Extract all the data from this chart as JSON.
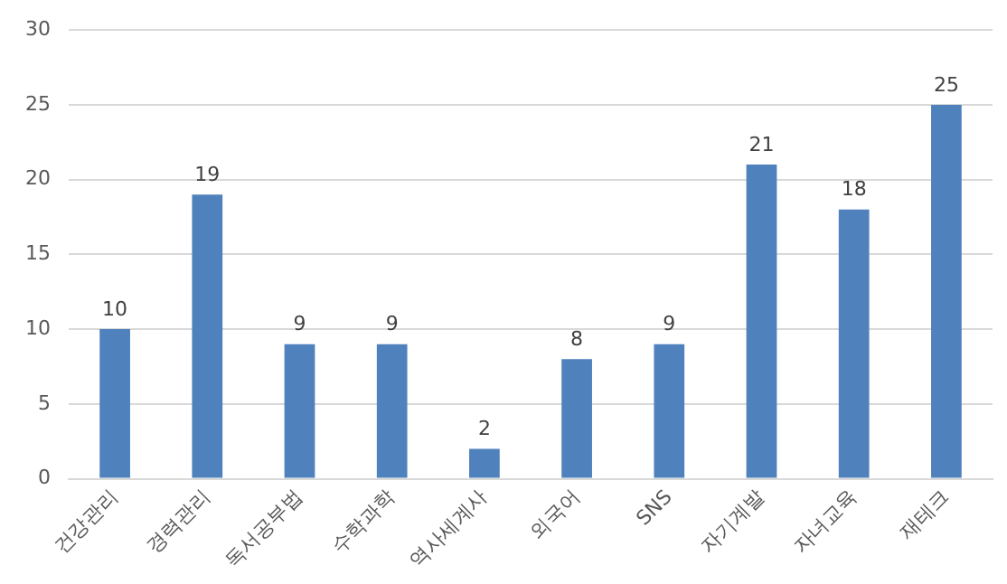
{
  "chart_data": {
    "type": "bar",
    "categories": [
      "건강관리",
      "경력관리",
      "독서공부법",
      "수학과학",
      "역사세계사",
      "외국어",
      "SNS",
      "자기계발",
      "자녀교육",
      "재테크"
    ],
    "values": [
      10,
      19,
      9,
      9,
      2,
      8,
      9,
      21,
      18,
      25
    ],
    "color": "#4f81bd",
    "ylim": [
      0,
      30
    ],
    "yticks": [
      0,
      5,
      10,
      15,
      20,
      25,
      30
    ],
    "grid": "y",
    "data_labels": true
  }
}
